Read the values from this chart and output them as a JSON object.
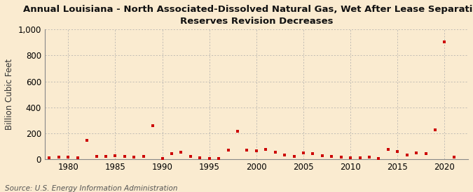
{
  "title_line1": "Annual Louisiana - North Associated-Dissolved Natural Gas, Wet After Lease Separation,",
  "title_line2": "Reserves Revision Decreases",
  "ylabel": "Billion Cubic Feet",
  "source": "Source: U.S. Energy Information Administration",
  "background_color": "#faebd0",
  "plot_background_color": "#faebd0",
  "marker_color": "#cc0000",
  "years": [
    1978,
    1979,
    1980,
    1981,
    1982,
    1983,
    1984,
    1985,
    1986,
    1987,
    1988,
    1989,
    1990,
    1991,
    1992,
    1993,
    1994,
    1995,
    1996,
    1997,
    1998,
    1999,
    2000,
    2001,
    2002,
    2003,
    2004,
    2005,
    2006,
    2007,
    2008,
    2009,
    2010,
    2011,
    2012,
    2013,
    2014,
    2015,
    2016,
    2017,
    2018,
    2019,
    2020,
    2021
  ],
  "values": [
    10,
    15,
    18,
    12,
    148,
    25,
    22,
    28,
    20,
    18,
    25,
    260,
    8,
    45,
    55,
    20,
    10,
    5,
    8,
    70,
    215,
    70,
    65,
    75,
    55,
    35,
    25,
    50,
    45,
    30,
    20,
    18,
    12,
    10,
    15,
    8,
    75,
    60,
    35,
    50,
    45,
    225,
    905,
    15
  ],
  "xlim": [
    1977.5,
    2022.5
  ],
  "ylim": [
    0,
    1000
  ],
  "yticks": [
    0,
    200,
    400,
    600,
    800,
    1000
  ],
  "xticks": [
    1980,
    1985,
    1990,
    1995,
    2000,
    2005,
    2010,
    2015,
    2020
  ],
  "grid_color": "#aaaaaa",
  "title_fontsize": 9.5,
  "axis_fontsize": 8.5,
  "source_fontsize": 7.5
}
